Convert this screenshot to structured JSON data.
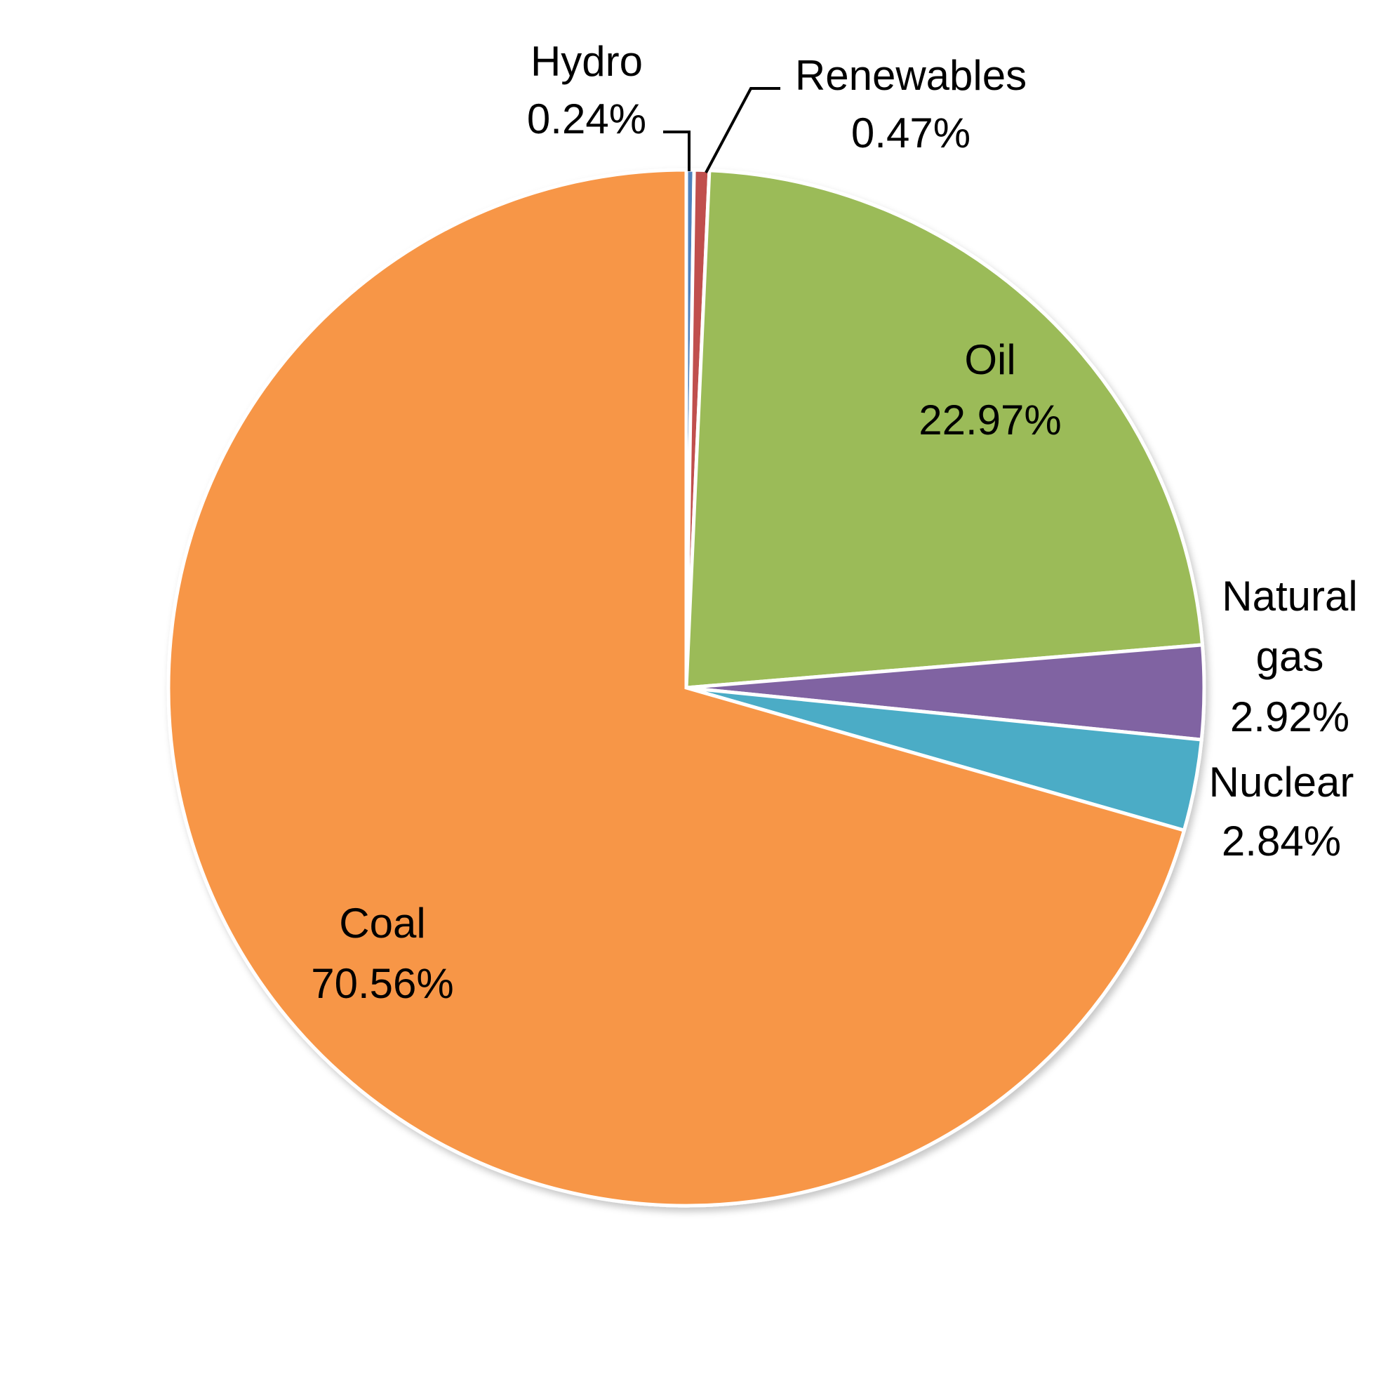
{
  "chart_data": {
    "type": "pie",
    "start_angle_deg": 0,
    "direction": "clockwise",
    "slices": [
      {
        "name": "Hydro",
        "value": 0.24,
        "value_label": "0.24%",
        "color": "#4F81BD"
      },
      {
        "name": "Renewables",
        "value": 0.47,
        "value_label": "0.47%",
        "color": "#C0504D"
      },
      {
        "name": "Oil",
        "value": 22.97,
        "value_label": "22.97%",
        "color": "#9BBB59"
      },
      {
        "name": "Natural gas",
        "value": 2.92,
        "value_label": "2.92%",
        "color": "#8064A2"
      },
      {
        "name": "Nuclear",
        "value": 2.84,
        "value_label": "2.84%",
        "color": "#4BACC6"
      },
      {
        "name": "Coal",
        "value": 70.56,
        "value_label": "70.56%",
        "color": "#F79646"
      }
    ]
  }
}
